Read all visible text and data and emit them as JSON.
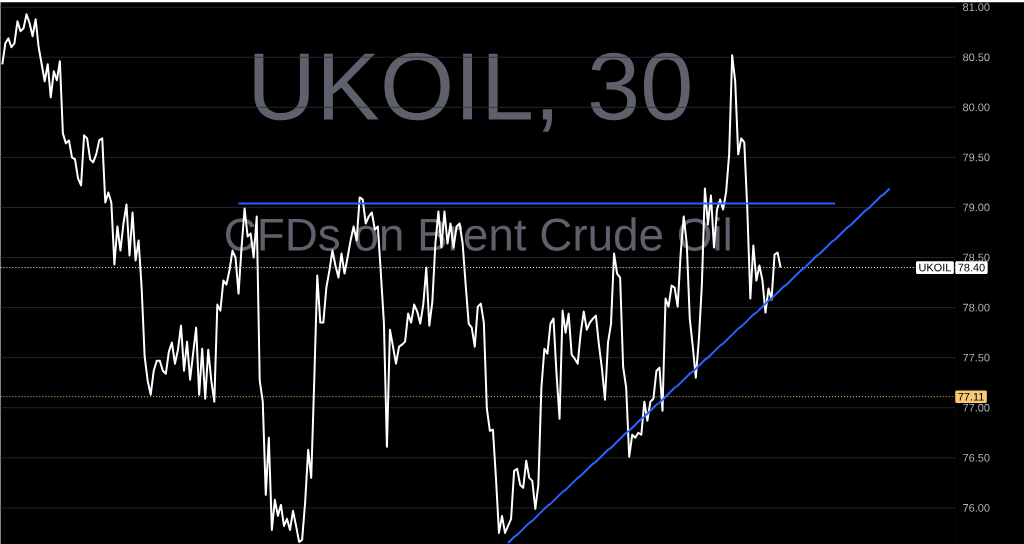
{
  "chart_data": {
    "type": "line",
    "title": "UKOIL, 30",
    "subtitle": "CFDs on Brent Crude Oil",
    "categories": [
      null,
      null,
      null,
      null,
      null,
      null,
      null,
      null,
      null,
      null,
      null,
      null,
      null,
      null,
      null,
      null,
      null,
      null,
      null,
      null,
      null,
      null,
      null,
      null,
      null,
      null,
      null,
      null,
      null,
      null,
      null,
      null,
      null,
      null,
      null,
      null,
      null,
      null,
      null,
      null,
      null,
      null,
      null,
      null,
      null,
      null,
      null,
      null,
      null,
      null,
      null,
      null,
      null,
      null,
      null,
      null,
      null,
      null,
      null,
      null,
      null,
      null,
      null,
      null,
      null,
      null,
      null,
      null,
      null,
      null,
      null,
      null,
      null,
      null,
      null,
      null,
      null,
      null,
      null,
      null,
      null,
      null,
      null,
      null,
      null,
      null,
      null,
      null,
      null,
      null,
      null,
      null,
      null,
      null,
      null,
      null,
      null,
      null,
      null,
      null,
      null,
      null,
      null,
      null,
      null,
      null,
      null,
      null,
      null,
      null,
      null,
      null,
      null,
      null,
      null,
      null,
      null,
      null,
      null,
      null,
      null,
      null,
      null,
      null,
      null,
      null,
      null,
      null,
      null,
      null,
      null,
      null,
      null,
      null,
      null,
      null,
      null,
      null,
      null,
      null,
      null,
      null,
      null,
      null,
      null,
      null,
      null,
      null,
      null,
      null,
      null,
      null,
      null,
      null,
      null,
      null,
      null,
      null,
      null,
      null,
      null,
      null,
      null,
      null,
      null,
      null,
      null,
      null,
      null,
      null,
      null,
      null,
      null,
      null,
      null,
      null,
      null,
      null,
      null,
      null,
      null,
      null,
      null,
      null,
      null,
      null,
      null,
      null,
      null,
      null,
      null,
      null,
      null,
      null,
      null,
      null,
      null,
      null,
      null,
      null,
      null,
      null,
      null,
      null,
      null,
      null,
      null,
      null,
      null,
      null,
      null,
      null,
      null,
      null,
      null,
      null,
      null,
      null,
      null,
      null,
      null,
      null,
      null,
      null,
      null,
      null,
      null,
      null,
      null,
      null,
      null,
      null,
      null,
      null,
      null,
      null,
      null,
      null,
      null,
      null,
      null,
      null,
      null,
      null,
      null,
      null,
      null,
      null,
      null,
      null,
      null,
      null,
      null,
      null,
      null,
      null,
      null,
      null,
      null,
      null,
      null,
      null,
      null,
      null,
      null,
      null,
      null,
      null,
      null,
      null,
      null,
      null,
      null,
      null,
      null,
      null,
      null,
      null,
      null,
      null,
      null,
      null,
      null,
      null,
      null,
      null,
      null,
      null,
      null,
      null,
      null,
      null,
      null,
      null,
      null,
      null,
      null,
      null,
      null,
      null,
      null,
      null,
      null,
      null,
      null,
      null,
      null,
      null,
      null,
      null,
      null,
      null,
      null,
      null,
      null
    ],
    "series": [
      {
        "color": "#ffffff",
        "values": [
          80.43,
          80.64,
          80.69,
          80.6,
          80.64,
          80.86,
          80.76,
          80.79,
          80.93,
          80.84,
          80.71,
          80.88,
          80.6,
          80.43,
          80.26,
          80.43,
          80.1,
          80.36,
          80.27,
          80.46,
          79.74,
          79.64,
          79.67,
          79.5,
          79.48,
          79.29,
          79.22,
          79.72,
          79.69,
          79.48,
          79.45,
          79.53,
          79.67,
          79.69,
          79.05,
          79.15,
          79.05,
          78.43,
          78.81,
          78.57,
          78.84,
          79.03,
          78.52,
          78.95,
          78.47,
          78.67,
          78.2,
          77.51,
          77.27,
          77.13,
          77.37,
          77.47,
          77.47,
          77.37,
          77.34,
          77.56,
          77.65,
          77.44,
          77.58,
          77.82,
          77.37,
          77.66,
          77.28,
          77.54,
          77.8,
          77.13,
          77.59,
          77.09,
          77.58,
          77.27,
          77.06,
          78.03,
          77.97,
          78.27,
          78.23,
          78.37,
          78.57,
          78.5,
          78.14,
          78.6,
          78.99,
          78.71,
          78.74,
          78.5,
          78.91,
          77.27,
          77.06,
          76.13,
          76.7,
          75.78,
          76.08,
          75.92,
          76.03,
          75.82,
          75.89,
          75.78,
          75.97,
          75.82,
          75.66,
          75.68,
          76.06,
          76.58,
          76.3,
          77.27,
          78.32,
          77.85,
          77.85,
          78.2,
          78.37,
          78.57,
          78.42,
          78.3,
          78.54,
          78.34,
          78.5,
          78.67,
          78.81,
          78.67,
          79.1,
          79.08,
          78.84,
          78.91,
          78.95,
          78.78,
          78.81,
          78.34,
          77.85,
          76.61,
          77.78,
          77.61,
          77.44,
          77.61,
          77.63,
          77.66,
          77.94,
          77.85,
          78.03,
          77.96,
          77.84,
          78.03,
          78.4,
          77.82,
          78.06,
          78.64,
          78.96,
          78.6,
          78.96,
          78.64,
          78.84,
          78.6,
          78.81,
          78.84,
          78.64,
          78.23,
          77.84,
          77.8,
          77.61,
          78.01,
          78.04,
          77.85,
          76.99,
          76.77,
          76.78,
          76.3,
          75.75,
          75.92,
          75.75,
          75.82,
          75.89,
          76.37,
          76.39,
          76.23,
          76.2,
          76.47,
          76.3,
          76.27,
          75.99,
          76.23,
          77.2,
          77.59,
          77.54,
          77.84,
          77.89,
          77.34,
          76.89,
          77.97,
          77.75,
          77.94,
          77.53,
          77.49,
          77.44,
          77.75,
          77.96,
          77.78,
          77.85,
          77.89,
          77.92,
          77.63,
          77.39,
          77.08,
          77.65,
          77.84,
          78.54,
          78.34,
          78.3,
          77.41,
          77.2,
          76.51,
          76.73,
          76.7,
          76.75,
          76.73,
          77.06,
          76.87,
          77.06,
          77.09,
          77.37,
          77.4,
          76.97,
          78.09,
          78.01,
          78.22,
          78.2,
          78.01,
          78.54,
          78.91,
          78.64,
          77.89,
          77.61,
          77.3,
          77.68,
          78.23,
          79.19,
          78.83,
          79.12,
          78.6,
          78.98,
          79.08,
          78.98,
          79.15,
          79.53,
          80.52,
          80.26,
          79.53,
          79.69,
          79.65,
          78.98,
          78.09,
          78.62,
          78.27,
          78.42,
          78.27,
          77.95,
          78.19,
          78.08,
          78.53,
          78.55,
          78.4,
          null,
          null,
          null,
          null,
          null,
          null,
          null,
          null,
          null,
          null,
          null,
          null,
          null,
          null,
          null,
          null,
          null,
          null,
          null,
          null,
          null,
          null,
          null,
          null,
          null,
          null,
          null,
          null,
          null,
          null,
          null,
          null,
          null,
          null,
          null,
          null,
          null,
          null,
          null,
          null,
          null,
          null,
          null,
          null,
          null,
          null,
          null,
          null,
          null,
          null,
          null,
          null,
          null,
          null,
          null,
          null,
          null
        ]
      },
      {
        "color": "#2962ff",
        "values": [
          null,
          null,
          null,
          null,
          null,
          null,
          null,
          null,
          null,
          null,
          null,
          null,
          null,
          null,
          null,
          null,
          null,
          null,
          null,
          null,
          null,
          null,
          null,
          null,
          null,
          null,
          null,
          null,
          null,
          null,
          null,
          null,
          null,
          null,
          null,
          null,
          null,
          null,
          null,
          null,
          null,
          null,
          null,
          null,
          null,
          null,
          null,
          null,
          null,
          null,
          null,
          null,
          null,
          null,
          null,
          null,
          null,
          null,
          null,
          null,
          null,
          null,
          null,
          null,
          null,
          null,
          null,
          null,
          null,
          null,
          null,
          null,
          null,
          null,
          null,
          null,
          null,
          null,
          79.04,
          79.04,
          79.04,
          79.04,
          79.04,
          79.04,
          79.04,
          79.04,
          79.04,
          79.04,
          79.04,
          79.04,
          79.04,
          79.04,
          79.04,
          79.04,
          79.04,
          79.04,
          79.04,
          79.04,
          79.04,
          79.04,
          79.04,
          79.04,
          79.04,
          79.04,
          79.04,
          79.04,
          79.04,
          79.04,
          79.04,
          79.04,
          79.04,
          79.04,
          79.04,
          79.04,
          79.04,
          79.04,
          79.04,
          79.04,
          79.04,
          79.04,
          79.04,
          79.04,
          79.04,
          79.04,
          79.04,
          79.04,
          79.04,
          79.04,
          79.04,
          79.04,
          79.04,
          79.04,
          79.04,
          79.04,
          79.04,
          79.04,
          79.04,
          79.04,
          79.04,
          79.04,
          79.04,
          79.04,
          79.04,
          79.04,
          79.04,
          79.04,
          79.04,
          79.04,
          79.04,
          79.04,
          79.04,
          79.04,
          79.04,
          79.04,
          79.04,
          79.04,
          79.04,
          79.04,
          79.04,
          79.04,
          79.04,
          79.04,
          79.04,
          79.04,
          79.04,
          79.04,
          79.04,
          79.04,
          79.04,
          79.04,
          79.04,
          79.04,
          79.04,
          79.04,
          79.04,
          79.04,
          79.04,
          79.04,
          79.04,
          79.04,
          79.04,
          79.04,
          79.04,
          79.04,
          79.04,
          79.04,
          79.04,
          79.04,
          79.04,
          79.04,
          79.04,
          79.04,
          79.04,
          79.04,
          79.04,
          79.04,
          79.04,
          79.04,
          79.04,
          79.04,
          79.04,
          79.04,
          79.04,
          79.04,
          79.04,
          79.04,
          79.04,
          79.04,
          79.04,
          79.04,
          79.04,
          79.04,
          79.04,
          79.04,
          79.04,
          79.04,
          79.04,
          79.04,
          79.04,
          79.04,
          79.04,
          79.04,
          79.04,
          79.04,
          79.04,
          79.04,
          79.04,
          79.04,
          79.04,
          79.04,
          79.04,
          79.04,
          79.04,
          79.04,
          79.04,
          79.04,
          79.04,
          79.04,
          79.04,
          79.04,
          79.04,
          79.04,
          79.04,
          79.04,
          79.04,
          79.04,
          79.04,
          79.04,
          79.04,
          79.04,
          79.04,
          79.04,
          79.04,
          79.04,
          79.04,
          79.04,
          79.04,
          79.04,
          79.04,
          79.04,
          79.04,
          79.04,
          79.04,
          79.04,
          79.04,
          79.04,
          79.04,
          79.04,
          79.04,
          79.04,
          79.04,
          79.04,
          79.04,
          79.04,
          79.04,
          79.04,
          null,
          null,
          null,
          null,
          null,
          null,
          null,
          null,
          null,
          null,
          null,
          null,
          null,
          null,
          null,
          null,
          null,
          null,
          null,
          null,
          null,
          null,
          null,
          null,
          null,
          null,
          null,
          null,
          null,
          null,
          null,
          null,
          null,
          null,
          null,
          null,
          null,
          null,
          null
        ]
      },
      {
        "color": "#2962ff",
        "values": [
          null,
          null,
          null,
          null,
          null,
          null,
          null,
          null,
          null,
          null,
          null,
          null,
          null,
          null,
          null,
          null,
          null,
          null,
          null,
          null,
          null,
          null,
          null,
          null,
          null,
          null,
          null,
          null,
          null,
          null,
          null,
          null,
          null,
          null,
          null,
          null,
          null,
          null,
          null,
          null,
          null,
          null,
          null,
          null,
          null,
          null,
          null,
          null,
          null,
          null,
          null,
          null,
          null,
          null,
          null,
          null,
          null,
          null,
          null,
          null,
          null,
          null,
          null,
          null,
          null,
          null,
          null,
          null,
          null,
          null,
          null,
          null,
          null,
          null,
          null,
          null,
          null,
          null,
          null,
          null,
          null,
          null,
          null,
          null,
          null,
          null,
          null,
          null,
          null,
          null,
          null,
          null,
          null,
          null,
          null,
          null,
          null,
          null,
          null,
          null,
          null,
          null,
          null,
          null,
          null,
          null,
          null,
          null,
          null,
          null,
          null,
          null,
          null,
          null,
          null,
          null,
          null,
          null,
          null,
          null,
          null,
          null,
          null,
          null,
          null,
          null,
          null,
          null,
          null,
          null,
          null,
          null,
          null,
          null,
          null,
          null,
          null,
          null,
          null,
          null,
          null,
          null,
          null,
          null,
          null,
          null,
          null,
          null,
          null,
          null,
          null,
          null,
          null,
          null,
          null,
          null,
          null,
          null,
          null,
          null,
          null,
          null,
          null,
          null,
          null,
          null,
          null,
          75.65,
          75.68,
          75.71,
          75.73,
          75.76,
          75.79,
          75.82,
          75.85,
          75.87,
          75.9,
          75.93,
          75.96,
          75.99,
          76.02,
          76.04,
          76.07,
          76.1,
          76.13,
          76.16,
          76.18,
          76.21,
          76.24,
          76.27,
          76.3,
          76.32,
          76.35,
          76.38,
          76.41,
          76.44,
          76.46,
          76.49,
          76.52,
          76.55,
          76.58,
          76.6,
          76.63,
          76.66,
          76.69,
          76.72,
          76.75,
          76.77,
          76.8,
          76.83,
          76.86,
          76.89,
          76.91,
          76.94,
          76.97,
          77.0,
          77.03,
          77.05,
          77.08,
          77.11,
          77.14,
          77.17,
          77.2,
          77.22,
          77.25,
          77.28,
          77.31,
          77.34,
          77.36,
          77.39,
          77.42,
          77.45,
          77.48,
          77.5,
          77.53,
          77.56,
          77.59,
          77.62,
          77.64,
          77.67,
          77.7,
          77.73,
          77.76,
          77.79,
          77.81,
          77.84,
          77.87,
          77.9,
          77.93,
          77.95,
          77.98,
          78.01,
          78.04,
          78.07,
          78.09,
          78.12,
          78.15,
          78.18,
          78.21,
          78.23,
          78.26,
          78.29,
          78.32,
          78.35,
          78.38,
          78.4,
          78.43,
          78.46,
          78.49,
          78.52,
          78.54,
          78.57,
          78.6,
          78.63,
          78.66,
          78.68,
          78.71,
          78.74,
          78.77,
          78.8,
          78.82,
          78.85,
          78.88,
          78.91,
          78.94,
          78.97,
          78.99,
          79.02,
          79.05,
          79.08,
          79.11,
          79.13,
          79.16,
          79.19,
          null,
          null,
          null,
          null,
          null,
          null,
          null,
          null,
          null,
          null,
          null,
          null,
          null,
          null,
          null,
          null,
          null,
          null,
          null,
          null,
          null
        ]
      }
    ],
    "annotations": [
      {
        "text": "UKOIL",
        "y": 78.4
      }
    ],
    "ylim": [
      75.64,
      81.05
    ],
    "yticks": [
      {
        "value": 76,
        "label": "76.00"
      },
      {
        "value": 76.5,
        "label": "76.50"
      },
      {
        "value": 77,
        "label": "77.00"
      },
      {
        "value": 77.5,
        "label": "77.50"
      },
      {
        "value": 78,
        "label": "78.00"
      },
      {
        "value": 78.5,
        "label": "78.50"
      },
      {
        "value": 79,
        "label": "79.00"
      },
      {
        "value": 79.5,
        "label": "79.50"
      },
      {
        "value": 80,
        "label": "80.00"
      },
      {
        "value": 80.5,
        "label": "80.50"
      },
      {
        "value": 81,
        "label": "81.00"
      }
    ],
    "ref_lines": [
      {
        "axis": "y",
        "value": 78.4,
        "label": "78.40",
        "color": "#ffffff",
        "line_style": "dotted"
      },
      {
        "axis": "y",
        "value": 77.11,
        "label": "77.11",
        "color": "#f7c873",
        "line_style": "dotted"
      }
    ],
    "grid": "y",
    "tick_labels": "y"
  }
}
